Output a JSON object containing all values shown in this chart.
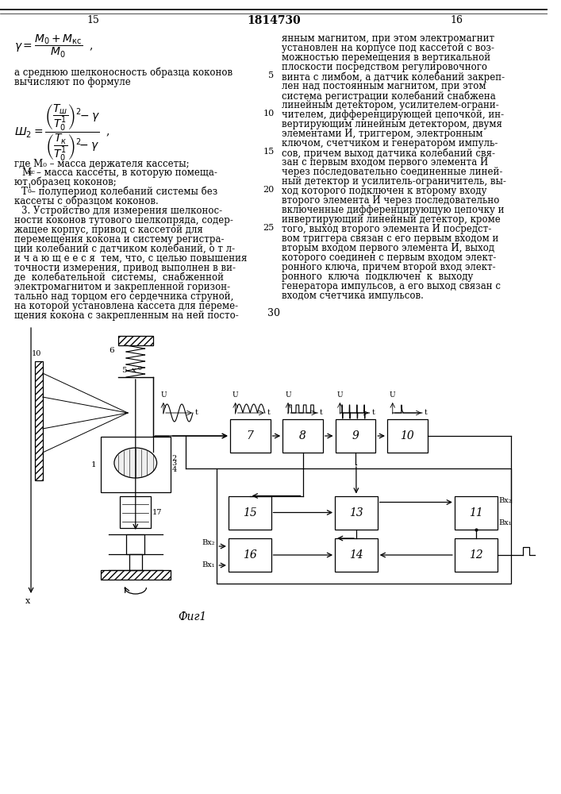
{
  "fig_width": 7.07,
  "fig_height": 10.0,
  "background_color": "#ffffff",
  "page_left": "15",
  "patent_number": "1814730",
  "page_right": "16",
  "page_bottom": "30",
  "figure_label": "Фиг 1"
}
